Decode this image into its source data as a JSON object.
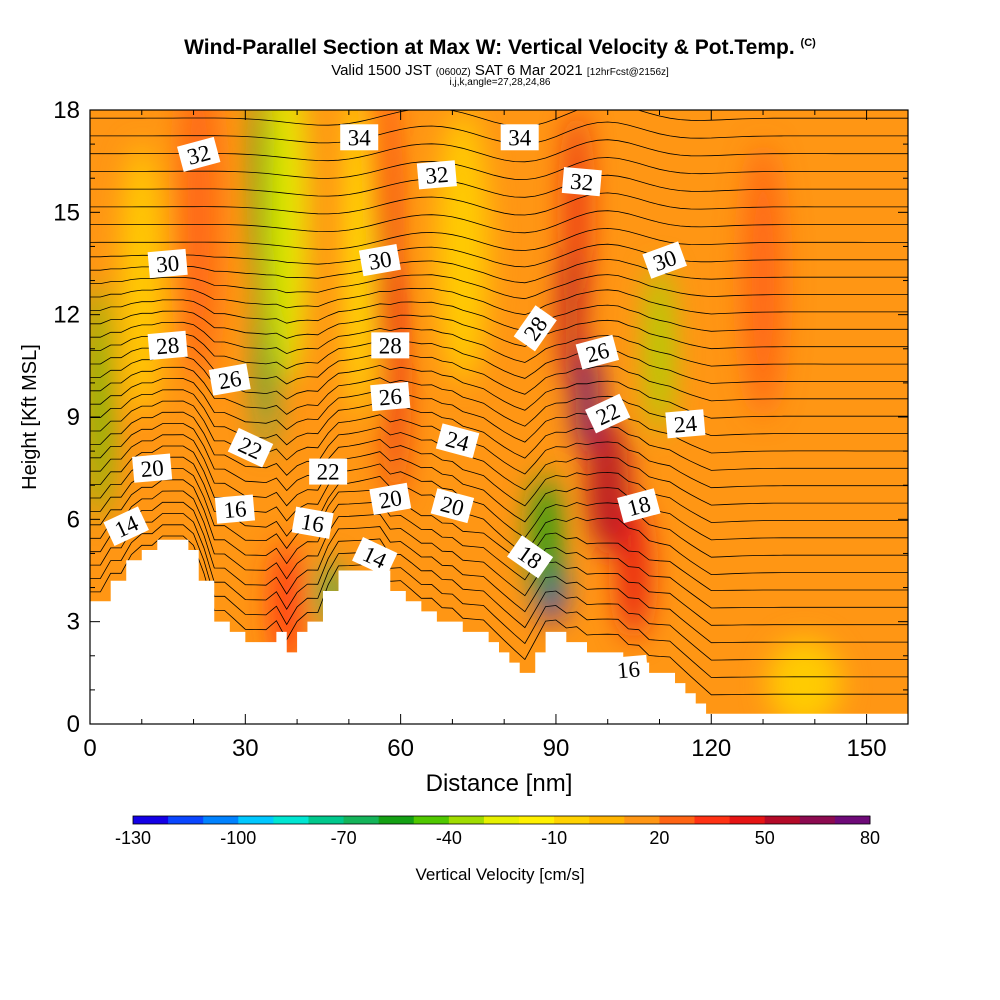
{
  "chart_data": {
    "type": "heatmap",
    "title": "Wind-Parallel Section at Max W: Vertical Velocity & Pot.Temp.",
    "title_mark": "(C)",
    "subtitle_prefix": "Valid 1500 JST",
    "subtitle_small1": "(0600Z)",
    "subtitle_date": "SAT 6 Mar 2021",
    "subtitle_small2": "[12hrFcst@2156z]",
    "subtitle2": "i,j,k,angle=27,28,24,86",
    "xlabel": "Distance [nm]",
    "ylabel": "Height [Kft MSL]",
    "xlim": [
      0,
      158
    ],
    "ylim": [
      0,
      18
    ],
    "x_ticks": [
      0,
      30,
      60,
      90,
      120,
      150
    ],
    "y_ticks": [
      0,
      3,
      6,
      9,
      12,
      15,
      18
    ],
    "colorbar": {
      "label": "Vertical Velocity [cm/s]",
      "range": [
        -130,
        80
      ],
      "step": 10,
      "tick_labels": [
        "-130",
        "-100",
        "-70",
        "-40",
        "-10",
        "20",
        "50",
        "80"
      ],
      "colors": [
        "#1400e6",
        "#0a46ff",
        "#0082ff",
        "#00c8ff",
        "#00e6d2",
        "#00c88c",
        "#14b45a",
        "#14a014",
        "#50c800",
        "#a0dc00",
        "#e6f000",
        "#fff000",
        "#ffd200",
        "#ffb400",
        "#ff9614",
        "#ff6414",
        "#ff3214",
        "#e61414",
        "#b40a28",
        "#8c0a50",
        "#6e0a78"
      ]
    },
    "background_value": 15,
    "terrain": [
      [
        0,
        3.6
      ],
      [
        4,
        3.6
      ],
      [
        4,
        4.2
      ],
      [
        7,
        4.2
      ],
      [
        7,
        4.8
      ],
      [
        10,
        4.8
      ],
      [
        10,
        5.1
      ],
      [
        13,
        5.1
      ],
      [
        13,
        5.4
      ],
      [
        19,
        5.4
      ],
      [
        19,
        5.1
      ],
      [
        21,
        5.1
      ],
      [
        21,
        4.2
      ],
      [
        24,
        4.2
      ],
      [
        24,
        3
      ],
      [
        27,
        3
      ],
      [
        27,
        2.7
      ],
      [
        30,
        2.7
      ],
      [
        30,
        2.4
      ],
      [
        36,
        2.4
      ],
      [
        36,
        2.7
      ],
      [
        38,
        2.7
      ],
      [
        38,
        2.1
      ],
      [
        40,
        2.1
      ],
      [
        40,
        2.7
      ],
      [
        42,
        2.7
      ],
      [
        42,
        3.0
      ],
      [
        45,
        3.0
      ],
      [
        45,
        3.9
      ],
      [
        48,
        3.9
      ],
      [
        48,
        4.5
      ],
      [
        58,
        4.5
      ],
      [
        58,
        3.9
      ],
      [
        61,
        3.9
      ],
      [
        61,
        3.6
      ],
      [
        64,
        3.6
      ],
      [
        64,
        3.3
      ],
      [
        67,
        3.3
      ],
      [
        67,
        3.0
      ],
      [
        72,
        3.0
      ],
      [
        72,
        2.7
      ],
      [
        77,
        2.7
      ],
      [
        77,
        2.4
      ],
      [
        79,
        2.4
      ],
      [
        79,
        2.1
      ],
      [
        81,
        2.1
      ],
      [
        81,
        1.8
      ],
      [
        83,
        1.8
      ],
      [
        83,
        1.5
      ],
      [
        86,
        1.5
      ],
      [
        86,
        2.1
      ],
      [
        88,
        2.1
      ],
      [
        88,
        2.7
      ],
      [
        92,
        2.7
      ],
      [
        92,
        2.4
      ],
      [
        96,
        2.4
      ],
      [
        96,
        2.1
      ],
      [
        101,
        2.1
      ],
      [
        101,
        2.1
      ],
      [
        103,
        2.1
      ],
      [
        103,
        1.8
      ],
      [
        108,
        1.8
      ],
      [
        108,
        1.5
      ],
      [
        113,
        1.5
      ],
      [
        113,
        1.2
      ],
      [
        115,
        1.2
      ],
      [
        115,
        0.9
      ],
      [
        117,
        0.9
      ],
      [
        117,
        0.6
      ],
      [
        119,
        0.6
      ],
      [
        119,
        0.3
      ],
      [
        158,
        0.3
      ]
    ],
    "features": [
      {
        "x": 2,
        "y": 9.5,
        "value": -45,
        "wx": 2,
        "wy": 3.5
      },
      {
        "x": 33,
        "y": 16,
        "value": -60,
        "wx": 1.5,
        "wy": 3.0
      },
      {
        "x": 34,
        "y": 11,
        "value": -65,
        "wx": 1.5,
        "wy": 3.0
      },
      {
        "x": 35,
        "y": 13.5,
        "value": -55,
        "wx": 2.5,
        "wy": 4.0
      },
      {
        "x": 38,
        "y": 15,
        "value": -25,
        "wx": 4,
        "wy": 5.0
      },
      {
        "x": 59,
        "y": 10,
        "value": 45,
        "wx": 1.6,
        "wy": 3.5
      },
      {
        "x": 57,
        "y": 14.5,
        "value": 40,
        "wx": 2,
        "wy": 3.5
      },
      {
        "x": 55,
        "y": 17,
        "value": 30,
        "wx": 3,
        "wy": 2.5
      },
      {
        "x": 52,
        "y": 14,
        "value": -15,
        "wx": 2.5,
        "wy": 5.0
      },
      {
        "x": 21,
        "y": 15,
        "value": 25,
        "wx": 4,
        "wy": 5.0
      },
      {
        "x": 89,
        "y": 4,
        "value": -130,
        "wx": 2.5,
        "wy": 1.0
      },
      {
        "x": 88,
        "y": 5.5,
        "value": -60,
        "wx": 3,
        "wy": 1.8
      },
      {
        "x": 94,
        "y": 15,
        "value": 40,
        "wx": 2,
        "wy": 3.0
      },
      {
        "x": 93,
        "y": 12,
        "value": 55,
        "wx": 2,
        "wy": 2.0
      },
      {
        "x": 96,
        "y": 9.5,
        "value": 80,
        "wx": 2.5,
        "wy": 1.5
      },
      {
        "x": 100,
        "y": 7,
        "value": 50,
        "wx": 4,
        "wy": 2.0
      },
      {
        "x": 105,
        "y": 4.5,
        "value": 45,
        "wx": 3,
        "wy": 2.0
      },
      {
        "x": 110,
        "y": 11,
        "value": -35,
        "wx": 2.5,
        "wy": 2.5
      },
      {
        "x": 46,
        "y": 3.8,
        "value": -65,
        "wx": 2,
        "wy": 1.0
      },
      {
        "x": 38,
        "y": 3.5,
        "value": 35,
        "wx": 3,
        "wy": 1.8
      },
      {
        "x": 130,
        "y": 13,
        "value": 25,
        "wx": 4,
        "wy": 4.0
      },
      {
        "x": 138,
        "y": 1.2,
        "value": -10,
        "wx": 7,
        "wy": 1.3
      },
      {
        "x": 72,
        "y": 14,
        "value": -10,
        "wx": 5,
        "wy": 4.0
      },
      {
        "x": 10,
        "y": 13,
        "value": -10,
        "wx": 4,
        "wy": 4.0
      }
    ],
    "isentrope_labels": [
      {
        "text": "32",
        "x": 21,
        "y": 16.7,
        "angle": -15
      },
      {
        "text": "34",
        "x": 52,
        "y": 17.2,
        "angle": 0
      },
      {
        "text": "34",
        "x": 83,
        "y": 17.2,
        "angle": 0
      },
      {
        "text": "32",
        "x": 67,
        "y": 16.1,
        "angle": -5
      },
      {
        "text": "32",
        "x": 95,
        "y": 15.9,
        "angle": 5
      },
      {
        "text": "30",
        "x": 15,
        "y": 13.5,
        "angle": -5
      },
      {
        "text": "30",
        "x": 56,
        "y": 13.6,
        "angle": -10
      },
      {
        "text": "30",
        "x": 111,
        "y": 13.6,
        "angle": -20
      },
      {
        "text": "28",
        "x": 86,
        "y": 11.6,
        "angle": -55
      },
      {
        "text": "28",
        "x": 15,
        "y": 11.1,
        "angle": -5
      },
      {
        "text": "28",
        "x": 58,
        "y": 11.1,
        "angle": 0
      },
      {
        "text": "26",
        "x": 27,
        "y": 10.1,
        "angle": -10
      },
      {
        "text": "26",
        "x": 58,
        "y": 9.6,
        "angle": -5
      },
      {
        "text": "26",
        "x": 98,
        "y": 10.9,
        "angle": -15
      },
      {
        "text": "24",
        "x": 71,
        "y": 8.3,
        "angle": 15
      },
      {
        "text": "24",
        "x": 115,
        "y": 8.8,
        "angle": -5
      },
      {
        "text": "22",
        "x": 31,
        "y": 8.1,
        "angle": 25
      },
      {
        "text": "22",
        "x": 46,
        "y": 7.4,
        "angle": 0
      },
      {
        "text": "22",
        "x": 100,
        "y": 9.1,
        "angle": -25
      },
      {
        "text": "20",
        "x": 12,
        "y": 7.5,
        "angle": -5
      },
      {
        "text": "20",
        "x": 58,
        "y": 6.6,
        "angle": -10
      },
      {
        "text": "20",
        "x": 70,
        "y": 6.4,
        "angle": 15
      },
      {
        "text": "18",
        "x": 85,
        "y": 4.9,
        "angle": 35
      },
      {
        "text": "18",
        "x": 106,
        "y": 6.4,
        "angle": -15
      },
      {
        "text": "16",
        "x": 28,
        "y": 6.3,
        "angle": -5
      },
      {
        "text": "16",
        "x": 43,
        "y": 5.9,
        "angle": 10
      },
      {
        "text": "16",
        "x": 104,
        "y": 1.6,
        "angle": -5
      },
      {
        "text": "14",
        "x": 7,
        "y": 5.8,
        "angle": -25
      },
      {
        "text": "14",
        "x": 55,
        "y": 4.9,
        "angle": 25
      }
    ]
  }
}
